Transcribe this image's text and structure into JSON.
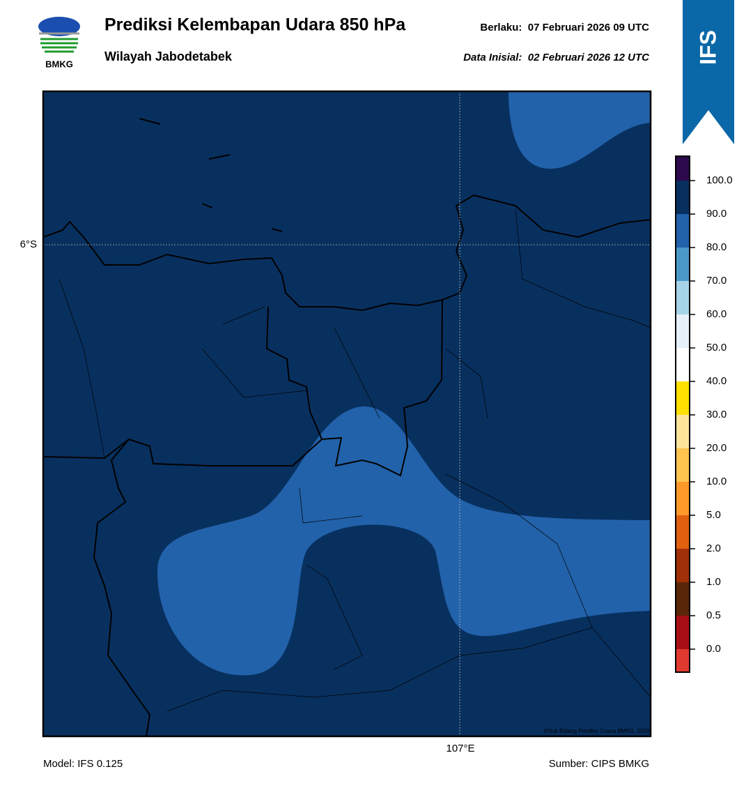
{
  "header": {
    "logo_text": "BMKG",
    "title": "Prediksi Kelembapan Udara 850 hPa",
    "subtitle": "Wilayah Jabodetabek",
    "valid": "Berlaku:  07 Februari 2026 09 UTC",
    "init": "Data Inisial:  02 Februari 2026 12 UTC",
    "badge": "IFS"
  },
  "map": {
    "lat_label": "6°S",
    "lon_label": "107°E",
    "credit": "©Sub Bidang Prediksi Cuaca BMKG, 2020"
  },
  "colorbar": {
    "labels": [
      "100.0",
      "90.0",
      "80.0",
      "70.0",
      "60.0",
      "50.0",
      "40.0",
      "30.0",
      "20.0",
      "10.0",
      "5.0",
      "2.0",
      "1.0",
      "0.5",
      "0.0"
    ]
  },
  "footer": {
    "model": "Model: IFS 0.125",
    "source": "Sumber: CIPS BMKG"
  }
}
